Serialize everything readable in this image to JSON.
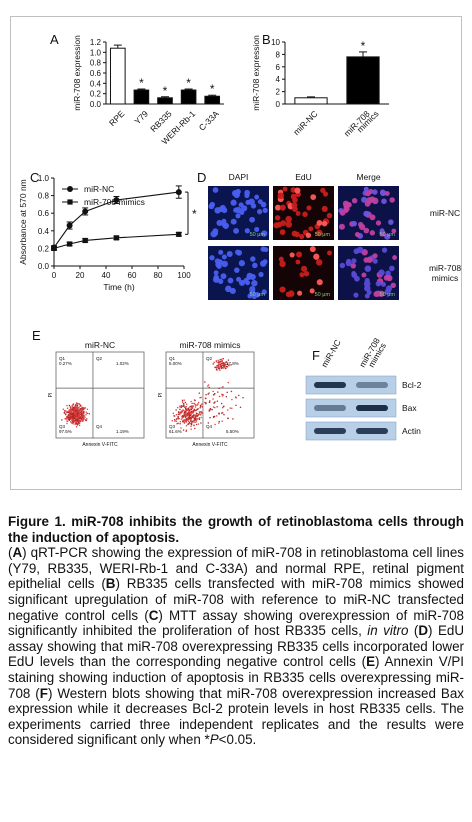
{
  "panels": {
    "A": {
      "letter": "A"
    },
    "B": {
      "letter": "B"
    },
    "C": {
      "letter": "C"
    },
    "D": {
      "letter": "D",
      "col_headers": [
        "DAPI",
        "EdU",
        "Merge"
      ],
      "row_labels": [
        [
          "miR-NC"
        ],
        [
          "miR-708",
          "mimics"
        ]
      ],
      "scale_label": "50 μm"
    },
    "E": {
      "letter": "E",
      "titles": [
        "miR-NC",
        "miR-708 mimics"
      ],
      "quadrant_labels": [
        [
          "Q1",
          "Q2",
          "Q3",
          "Q4"
        ],
        [
          "Q1",
          "Q2",
          "Q3",
          "Q4"
        ]
      ],
      "quadrant_values": [
        [
          "0.27%",
          "1.02%",
          "97.5%",
          "1.19%"
        ],
        [
          "5.00%",
          "27.8%",
          "61.6%",
          "5.50%"
        ]
      ],
      "xlabel": "Annexin V-FITC",
      "ylabel": "PI"
    },
    "F": {
      "letter": "F",
      "lanes": [
        "miR-NC",
        "miR-708\nmimics"
      ],
      "bands": [
        "Bcl-2",
        "Bax",
        "Actin"
      ]
    }
  },
  "chart_data": [
    {
      "type": "bar",
      "panel": "A",
      "categories": [
        "RPE",
        "Y79",
        "RB335",
        "WERI-Rb-1",
        "C-33A"
      ],
      "values": [
        1.08,
        0.27,
        0.12,
        0.27,
        0.15
      ],
      "errors": [
        0.06,
        0.02,
        0.02,
        0.02,
        0.02
      ],
      "significance": [
        "",
        "*",
        "*",
        "*",
        "*"
      ],
      "ylabel": "miR-708 expression",
      "ylim": [
        0,
        1.2
      ],
      "yticks": [
        "0.0",
        "0.2",
        "0.4",
        "0.6",
        "0.8",
        "1.0",
        "1.2"
      ],
      "fills": [
        "#ffffff",
        "#000000",
        "#000000",
        "#000000",
        "#000000"
      ]
    },
    {
      "type": "bar",
      "panel": "B",
      "categories": [
        "miR-NC",
        "miR-708\nmimics"
      ],
      "values": [
        1.0,
        7.6
      ],
      "errors": [
        0.15,
        0.8
      ],
      "significance": [
        "",
        "*"
      ],
      "ylabel": "miR-708 expression",
      "ylim": [
        0,
        10
      ],
      "yticks": [
        "0",
        "2",
        "4",
        "6",
        "8",
        "10"
      ],
      "fills": [
        "#ffffff",
        "#000000"
      ]
    },
    {
      "type": "line",
      "panel": "C",
      "series": [
        {
          "name": "miR-NC",
          "x": [
            0,
            12,
            24,
            48,
            96
          ],
          "values": [
            0.21,
            0.46,
            0.62,
            0.75,
            0.84
          ],
          "errors": [
            0.02,
            0.04,
            0.04,
            0.04,
            0.07
          ],
          "marker": "circle"
        },
        {
          "name": "miR-708 mimics",
          "x": [
            0,
            12,
            24,
            48,
            96
          ],
          "values": [
            0.2,
            0.25,
            0.29,
            0.32,
            0.36
          ],
          "errors": [
            0.02,
            0.02,
            0.02,
            0.02,
            0.02
          ],
          "marker": "square"
        }
      ],
      "xlabel": "Time (h)",
      "ylabel": "Absorbance at 570 nm",
      "xlim": [
        0,
        100
      ],
      "ylim": [
        0.0,
        1.0
      ],
      "xticks": [
        "0",
        "20",
        "40",
        "60",
        "80",
        "100"
      ],
      "yticks": [
        "0.0",
        "0.2",
        "0.4",
        "0.6",
        "0.8",
        "1.0"
      ],
      "significance": "*"
    }
  ],
  "caption": {
    "title": "Figure 1. miR-708 inhibits the growth of retinoblastoma cells through the induction of apoptosis.",
    "body": [
      {
        "b": "A"
      },
      {
        "t": ") qRT-PCR showing the expression of miR-708 in retinoblastoma cell lines (Y79, RB335, WERI-Rb-1 and C-33A) and normal RPE, retinal pigment epithelial cells ("
      },
      {
        "b": "B"
      },
      {
        "t": ") RB335 cells transfected with miR-708 mimics showed significant upregulation of miR-708 with reference to miR-NC transfected negative control cells ("
      },
      {
        "b": "C"
      },
      {
        "t": ") MTT assay showing overexpression of miR-708 significantly inhibited the proliferation of host RB335 cells, "
      },
      {
        "i": "in vitro"
      },
      {
        "t": " ("
      },
      {
        "b": "D"
      },
      {
        "t": ") EdU assay showing that miR-708 overexpressing RB335 cells incorporated lower EdU levels than the corresponding negative control cells ("
      },
      {
        "b": "E"
      },
      {
        "t": ") Annexin V/PI staining showing induction of apoptosis in RB335 cells overexpressing miR-708 ("
      },
      {
        "b": "F"
      },
      {
        "t": ") Western blots showing that miR-708 overexpression increased Bax expression while it decreases Bcl-2 protein levels in host RB335 cells. The experiments carried three independent replicates and the results were considered significant only when *"
      },
      {
        "i": "P"
      },
      {
        "t": "<0.05."
      }
    ]
  }
}
